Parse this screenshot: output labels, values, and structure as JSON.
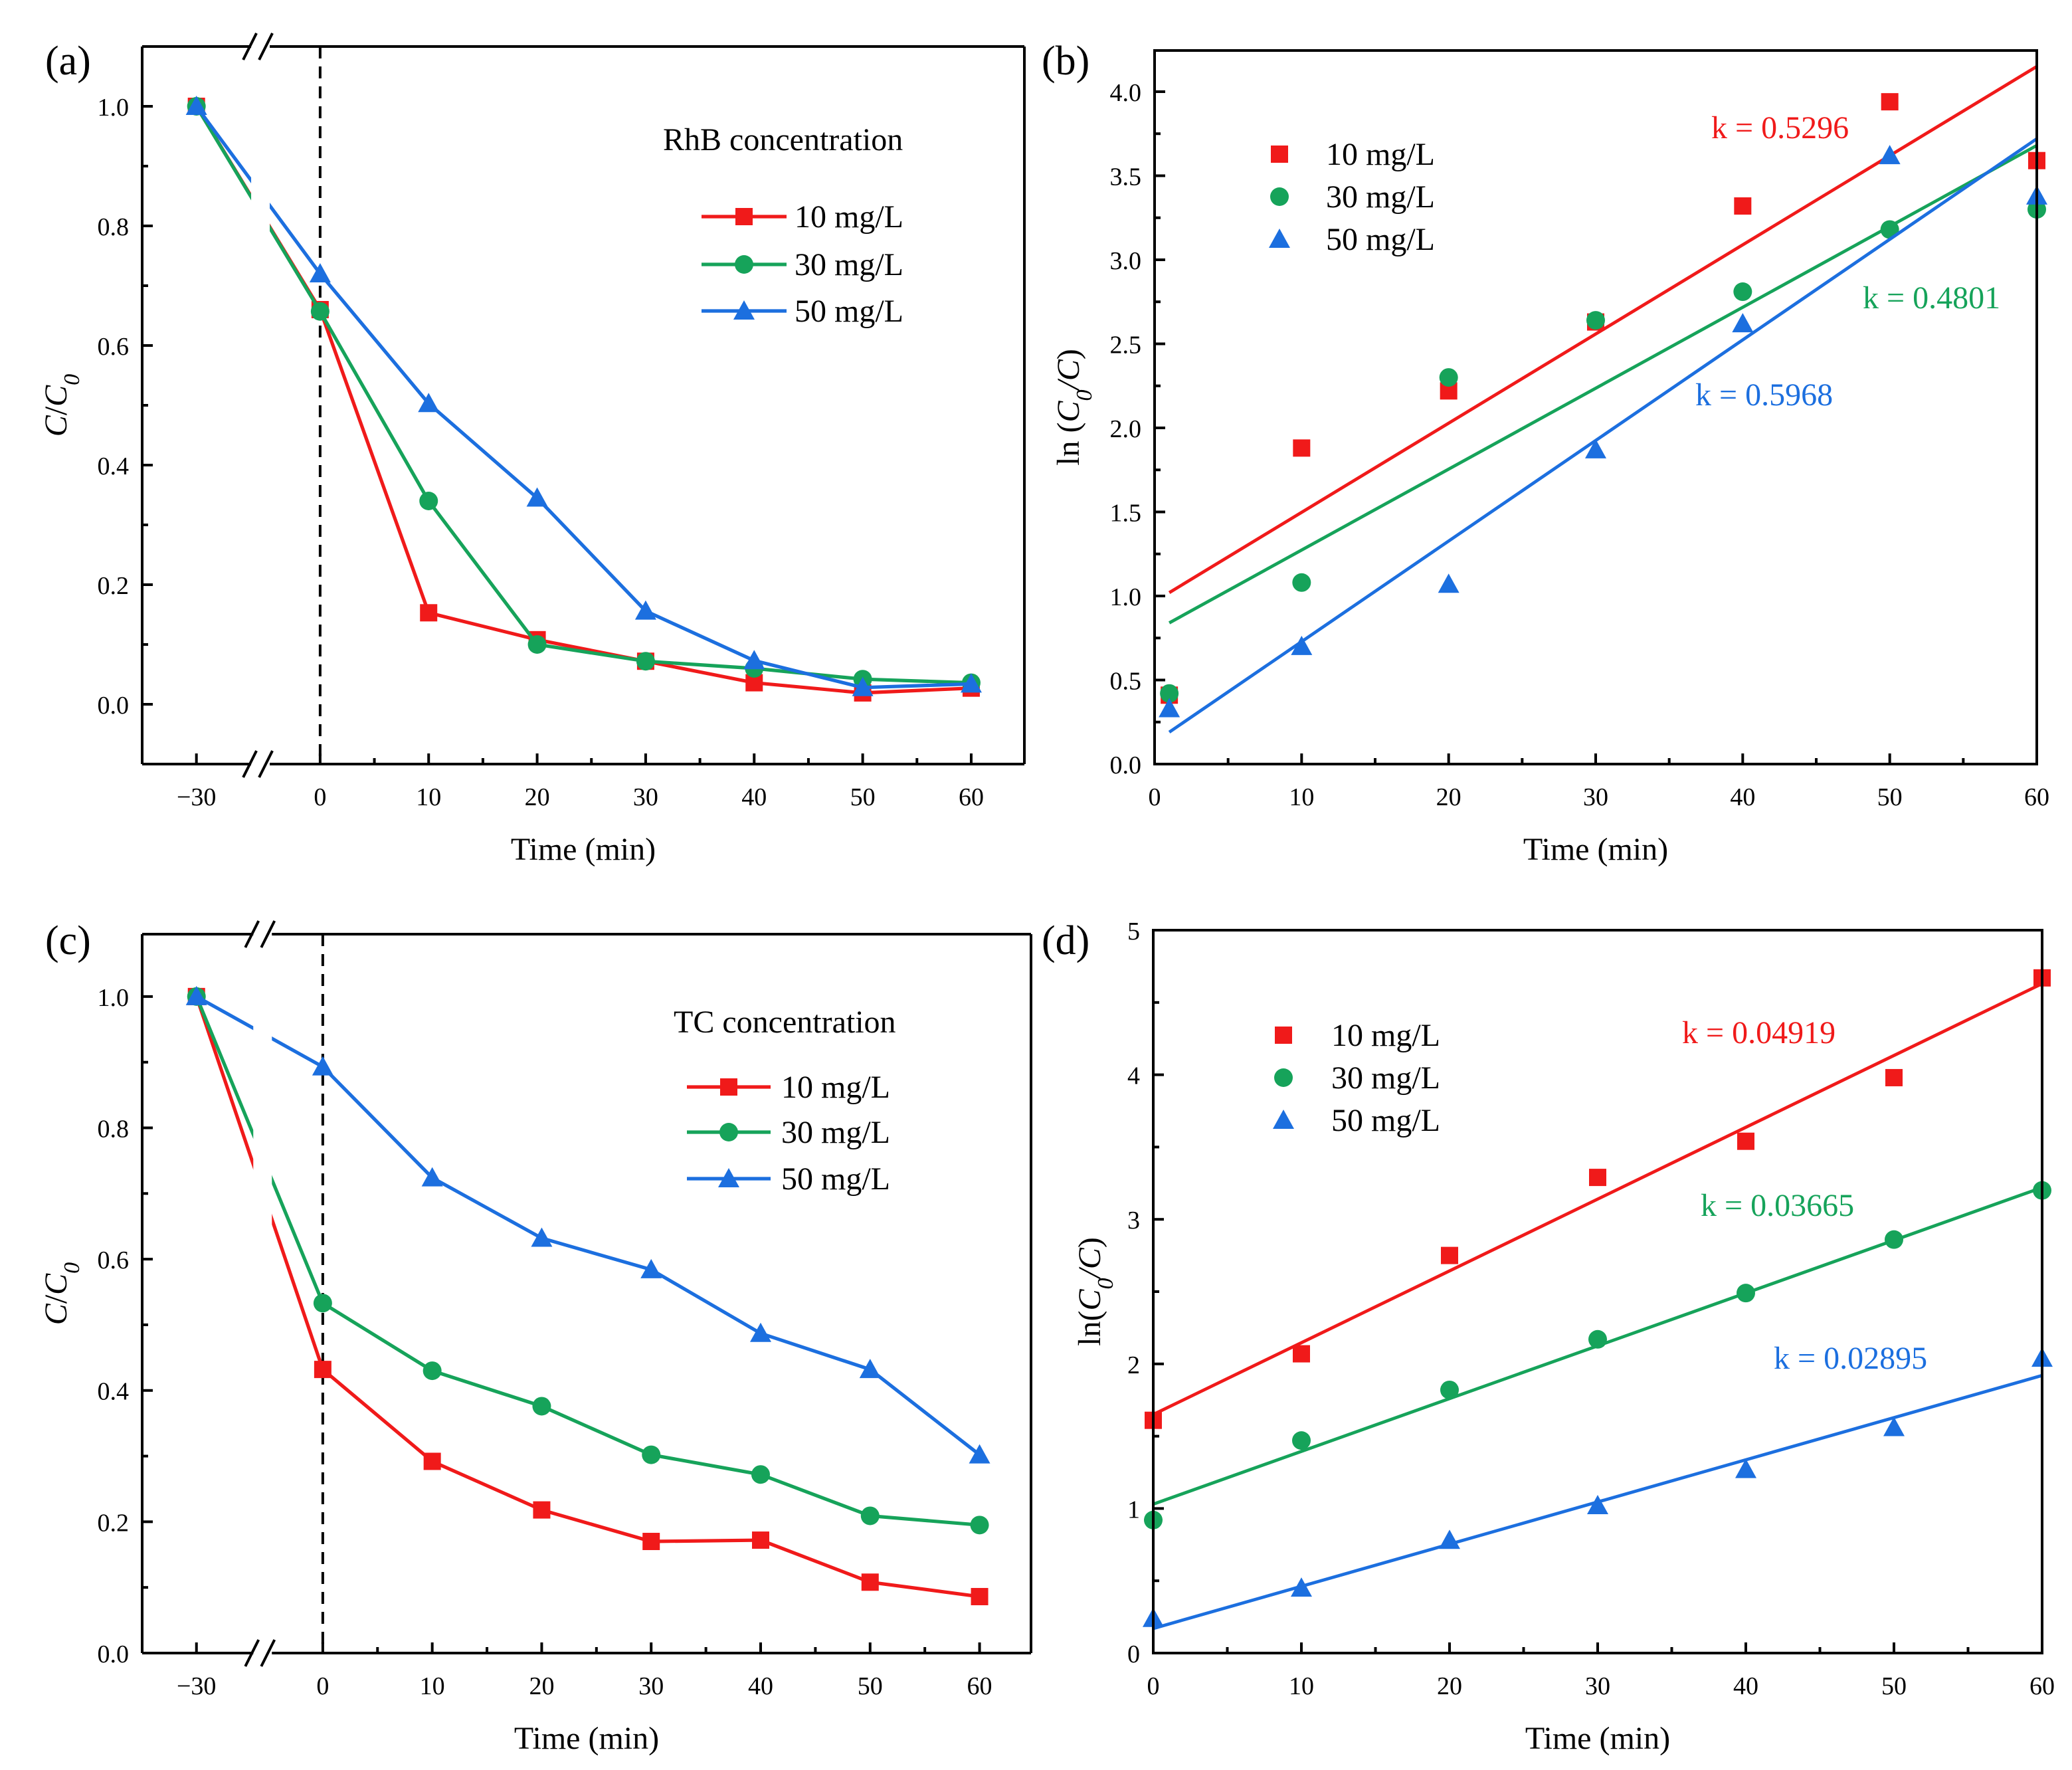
{
  "colors": {
    "10 mg/L": "#f01a1a",
    "30 mg/L": "#16a35a",
    "50 mg/L": "#1c6fdf",
    "axis": "#000000"
  },
  "chart_data": [
    {
      "panel_label": "(a)",
      "type": "line",
      "title": "",
      "xlabel": "Time (min)",
      "ylabel_parts": [
        {
          "t": "C",
          "i": true
        },
        {
          "t": "/",
          "i": false
        },
        {
          "t": "C",
          "i": true
        },
        {
          "t": "0",
          "i": true,
          "sub": true
        }
      ],
      "ylim": [
        -0.1,
        1.1
      ],
      "x_ticks": [
        -30,
        0,
        10,
        20,
        30,
        40,
        50,
        60
      ],
      "x_tick_labels": [
        "−30",
        "0",
        "10",
        "20",
        "30",
        "40",
        "50",
        "60"
      ],
      "x_minor_step": 5,
      "y_ticks": [
        0,
        0.2,
        0.4,
        0.6,
        0.8,
        1.0
      ],
      "y_tick_labels": [
        "0.0",
        "0.2",
        "0.4",
        "0.6",
        "0.8",
        "1.0"
      ],
      "y_minor_step": 0.1,
      "axis_break": "between -30 and 0",
      "dashed_vline_x": 0,
      "legend": {
        "title": "RhB concentration",
        "placement": "upper-right"
      },
      "series": [
        {
          "name": "10 mg/L",
          "marker": "square",
          "x": [
            -30,
            0,
            10,
            20,
            30,
            40,
            50,
            60
          ],
          "y": [
            1.0,
            0.66,
            0.153,
            0.108,
            0.072,
            0.036,
            0.019,
            0.027
          ]
        },
        {
          "name": "30 mg/L",
          "marker": "circle",
          "x": [
            -30,
            0,
            10,
            20,
            30,
            40,
            50,
            60
          ],
          "y": [
            1.0,
            0.657,
            0.34,
            0.1,
            0.072,
            0.06,
            0.042,
            0.036
          ]
        },
        {
          "name": "50 mg/L",
          "marker": "triangle",
          "x": [
            -30,
            0,
            10,
            20,
            30,
            40,
            50,
            60
          ],
          "y": [
            1.0,
            0.72,
            0.503,
            0.345,
            0.156,
            0.073,
            0.028,
            0.034
          ]
        }
      ]
    },
    {
      "panel_label": "(b)",
      "type": "scatter",
      "title": "",
      "xlabel": "Time (min)",
      "ylabel_parts": [
        {
          "t": "ln (",
          "i": false
        },
        {
          "t": "C",
          "i": true
        },
        {
          "t": "0",
          "i": true,
          "sub": true
        },
        {
          "t": "/",
          "i": true
        },
        {
          "t": "C",
          "i": true
        },
        {
          "t": ")",
          "i": false
        }
      ],
      "xlim": [
        0,
        60
      ],
      "ylim": [
        0,
        4.245
      ],
      "x_ticks": [
        0,
        10,
        20,
        30,
        40,
        50,
        60
      ],
      "x_tick_labels": [
        "0",
        "10",
        "20",
        "30",
        "40",
        "50",
        "60"
      ],
      "x_minor_step": 5,
      "y_ticks": [
        0,
        0.5,
        1.0,
        1.5,
        2.0,
        2.5,
        3.0,
        3.5,
        4.0
      ],
      "y_tick_labels": [
        "0.0",
        "0.5",
        "1.0",
        "1.5",
        "2.0",
        "2.5",
        "3.0",
        "3.5",
        "4.0"
      ],
      "y_minor_step": 0.25,
      "legend": {
        "placement": "upper-left"
      },
      "series": [
        {
          "name": "10 mg/L",
          "marker": "square",
          "x": [
            1,
            10,
            20,
            30,
            40,
            50,
            60
          ],
          "y": [
            0.41,
            1.88,
            2.22,
            2.63,
            3.32,
            3.94,
            3.59
          ],
          "fit": {
            "x": [
              1,
              60
            ],
            "y": [
              1.02,
              4.15
            ],
            "k_label": "k = 0.5296"
          }
        },
        {
          "name": "30 mg/L",
          "marker": "circle",
          "x": [
            1,
            10,
            20,
            30,
            40,
            50,
            60
          ],
          "y": [
            0.42,
            1.08,
            2.3,
            2.64,
            2.81,
            3.18,
            3.3
          ],
          "fit": {
            "x": [
              1,
              60
            ],
            "y": [
              0.84,
              3.68
            ],
            "k_label": "k = 0.4801"
          }
        },
        {
          "name": "50 mg/L",
          "marker": "triangle",
          "x": [
            1,
            10,
            20,
            30,
            40,
            50,
            60
          ],
          "y": [
            0.33,
            0.7,
            1.07,
            1.87,
            2.62,
            3.62,
            3.38
          ],
          "fit": {
            "x": [
              1,
              60
            ],
            "y": [
              0.19,
              3.72
            ],
            "k_label": "k = 0.5968"
          }
        }
      ]
    },
    {
      "panel_label": "(c)",
      "type": "line",
      "title": "",
      "xlabel": "Time (min)",
      "ylabel_parts": [
        {
          "t": "C",
          "i": true
        },
        {
          "t": "/",
          "i": false
        },
        {
          "t": "C",
          "i": true
        },
        {
          "t": "0",
          "i": true,
          "sub": true
        }
      ],
      "ylim": [
        0,
        1.095
      ],
      "x_ticks": [
        -30,
        0,
        10,
        20,
        30,
        40,
        50,
        60
      ],
      "x_tick_labels": [
        "−30",
        "0",
        "10",
        "20",
        "30",
        "40",
        "50",
        "60"
      ],
      "x_minor_step": 5,
      "y_ticks": [
        0,
        0.2,
        0.4,
        0.6,
        0.8,
        1.0
      ],
      "y_tick_labels": [
        "0.0",
        "0.2",
        "0.4",
        "0.6",
        "0.8",
        "1.0"
      ],
      "y_minor_step": 0.1,
      "axis_break": "between -30 and 0",
      "dashed_vline_x": 0,
      "legend": {
        "title": "TC concentration",
        "placement": "upper-right"
      },
      "series": [
        {
          "name": "10 mg/L",
          "marker": "square",
          "x": [
            -30,
            0,
            10,
            20,
            30,
            40,
            50,
            60
          ],
          "y": [
            1.0,
            0.432,
            0.292,
            0.218,
            0.17,
            0.172,
            0.108,
            0.086
          ]
        },
        {
          "name": "30 mg/L",
          "marker": "circle",
          "x": [
            -30,
            0,
            10,
            20,
            30,
            40,
            50,
            60
          ],
          "y": [
            1.0,
            0.533,
            0.43,
            0.376,
            0.302,
            0.272,
            0.209,
            0.195
          ]
        },
        {
          "name": "50 mg/L",
          "marker": "triangle",
          "x": [
            -30,
            0,
            10,
            20,
            30,
            40,
            50,
            60
          ],
          "y": [
            1.0,
            0.893,
            0.724,
            0.632,
            0.584,
            0.487,
            0.432,
            0.302
          ]
        }
      ]
    },
    {
      "panel_label": "(d)",
      "type": "scatter",
      "title": "",
      "xlabel": "Time (min)",
      "ylabel_parts": [
        {
          "t": "ln(",
          "i": false
        },
        {
          "t": "C",
          "i": true
        },
        {
          "t": "0",
          "i": true,
          "sub": true
        },
        {
          "t": "/",
          "i": true
        },
        {
          "t": "C",
          "i": true
        },
        {
          "t": ")",
          "i": false
        }
      ],
      "xlim": [
        0,
        60
      ],
      "ylim": [
        0,
        5
      ],
      "x_ticks": [
        0,
        10,
        20,
        30,
        40,
        50,
        60
      ],
      "x_tick_labels": [
        "0",
        "10",
        "20",
        "30",
        "40",
        "50",
        "60"
      ],
      "x_minor_step": 5,
      "y_ticks": [
        0,
        1,
        2,
        3,
        4,
        5
      ],
      "y_tick_labels": [
        "0",
        "1",
        "2",
        "3",
        "4",
        "5"
      ],
      "y_minor_step": 0.5,
      "legend": {
        "placement": "upper-left"
      },
      "series": [
        {
          "name": "10 mg/L",
          "marker": "square",
          "x": [
            0,
            10,
            20,
            30,
            40,
            50,
            60
          ],
          "y": [
            1.61,
            2.07,
            2.75,
            3.29,
            3.54,
            3.98,
            4.67
          ],
          "fit": {
            "x": [
              0,
              60
            ],
            "y": [
              1.65,
              4.63
            ],
            "k_label": "k = 0.04919"
          }
        },
        {
          "name": "30 mg/L",
          "marker": "circle",
          "x": [
            0,
            10,
            20,
            30,
            40,
            50,
            60
          ],
          "y": [
            0.92,
            1.47,
            1.82,
            2.17,
            2.49,
            2.86,
            3.2
          ],
          "fit": {
            "x": [
              0,
              60
            ],
            "y": [
              1.03,
              3.22
            ],
            "k_label": "k = 0.03665"
          }
        },
        {
          "name": "50 mg/L",
          "marker": "triangle",
          "x": [
            0,
            10,
            20,
            30,
            40,
            50,
            60
          ],
          "y": [
            0.24,
            0.45,
            0.78,
            1.02,
            1.27,
            1.56,
            2.04
          ],
          "fit": {
            "x": [
              0,
              60
            ],
            "y": [
              0.17,
              1.92
            ],
            "k_label": "k = 0.02895"
          }
        }
      ]
    }
  ]
}
